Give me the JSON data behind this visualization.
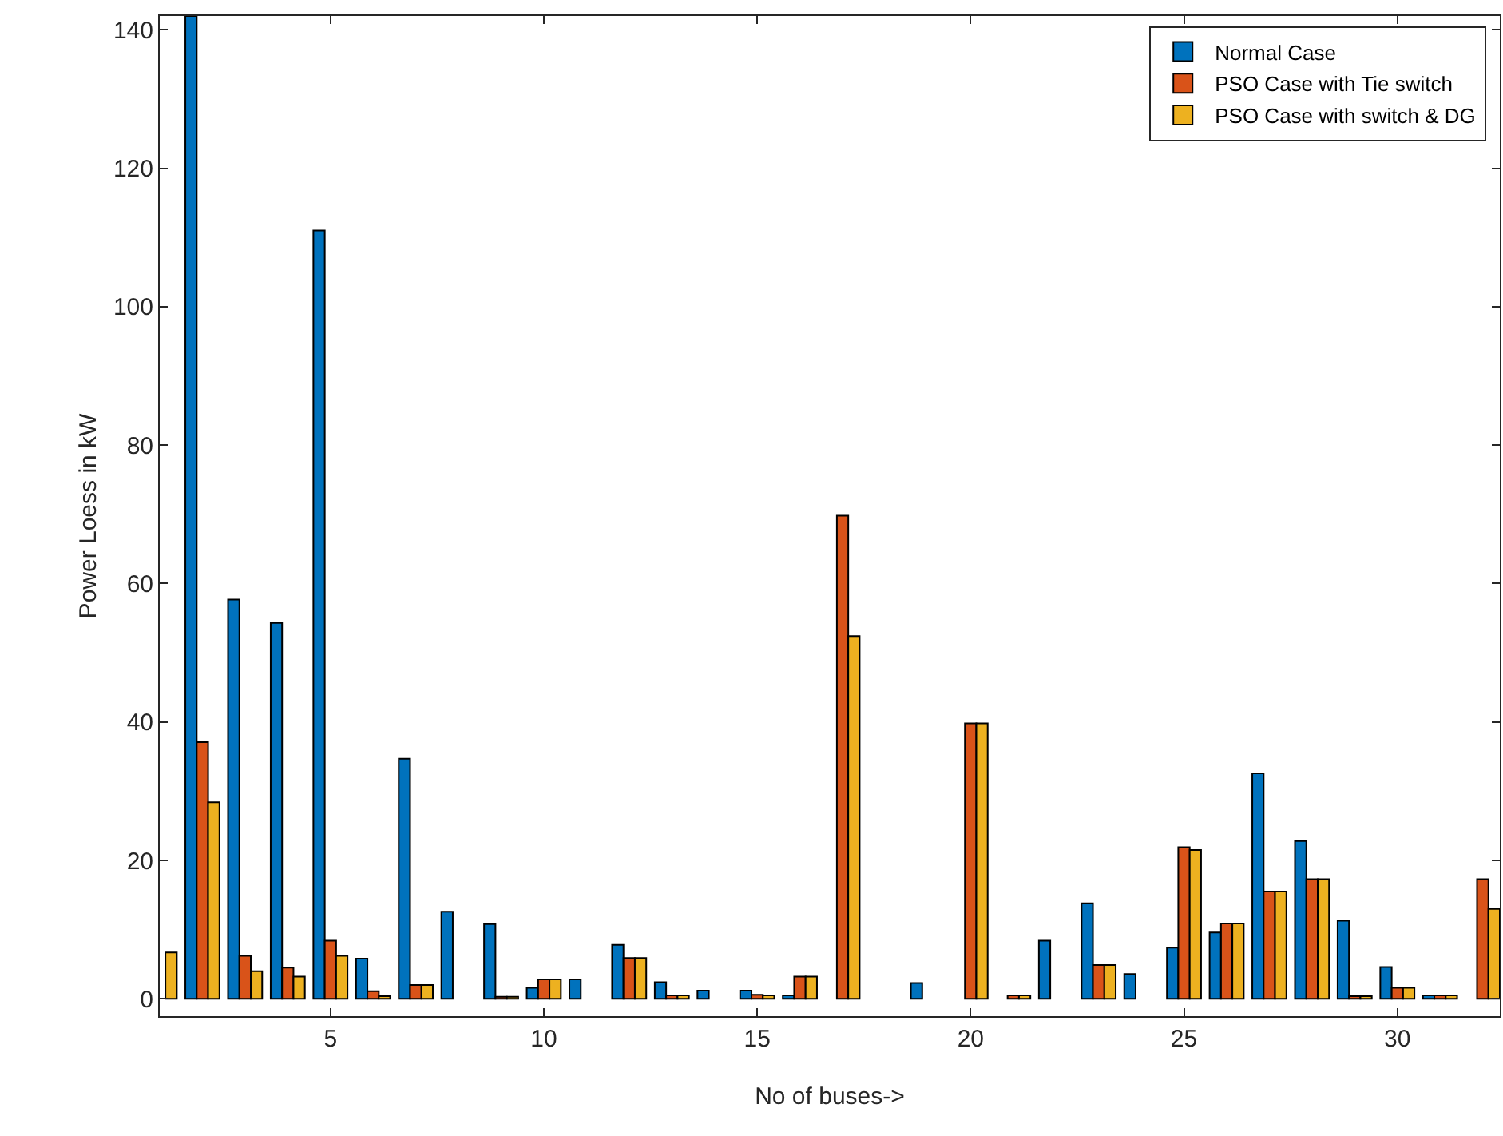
{
  "chart_data": {
    "type": "bar",
    "xlabel": "No of buses->",
    "ylabel": "Power Loess in kW",
    "x": [
      1,
      2,
      3,
      4,
      5,
      6,
      7,
      8,
      9,
      10,
      11,
      12,
      13,
      14,
      15,
      16,
      17,
      18,
      19,
      20,
      21,
      22,
      23,
      24,
      25,
      26,
      27,
      28,
      29,
      30,
      31,
      32
    ],
    "series": [
      {
        "name": "Normal Case",
        "color": "#0072bd",
        "values": [
          null,
          142,
          57.7,
          54.3,
          111,
          5.8,
          34.7,
          12.6,
          10.8,
          1.6,
          2.8,
          7.8,
          2.4,
          1.2,
          1.2,
          0.5,
          0,
          0,
          2.3,
          0,
          0,
          8.4,
          13.8,
          3.6,
          7.4,
          9.6,
          32.6,
          22.8,
          11.3,
          4.6,
          0.5,
          0
        ]
      },
      {
        "name": "PSO Case with Tie switch",
        "color": "#d95319",
        "values": [
          null,
          37.1,
          6.2,
          4.5,
          8.4,
          1.1,
          2,
          0,
          0.3,
          2.8,
          0,
          5.9,
          0.5,
          0,
          0.6,
          3.2,
          69.8,
          0,
          0,
          39.8,
          0.5,
          0,
          4.9,
          0,
          21.9,
          10.9,
          15.5,
          17.3,
          0.4,
          1.6,
          0.5,
          17.3
        ]
      },
      {
        "name": "PSO Case with switch & DG",
        "color": "#edb120",
        "values": [
          6.7,
          28.4,
          4,
          3.2,
          6.2,
          0.4,
          2,
          0,
          0.3,
          2.8,
          0,
          5.9,
          0.5,
          0,
          0.5,
          3.2,
          52.4,
          0,
          0,
          39.8,
          0.5,
          0,
          4.9,
          0,
          21.5,
          10.9,
          15.5,
          17.3,
          0.4,
          1.6,
          0.5,
          13
        ]
      }
    ],
    "xlim": [
      1,
      32.4
    ],
    "xticks": [
      5,
      10,
      15,
      20,
      25,
      30
    ],
    "ylim": [
      -2.5,
      142
    ],
    "yticks": [
      0,
      20,
      40,
      60,
      80,
      100,
      120,
      140
    ],
    "grid": false,
    "legend": "top right"
  }
}
